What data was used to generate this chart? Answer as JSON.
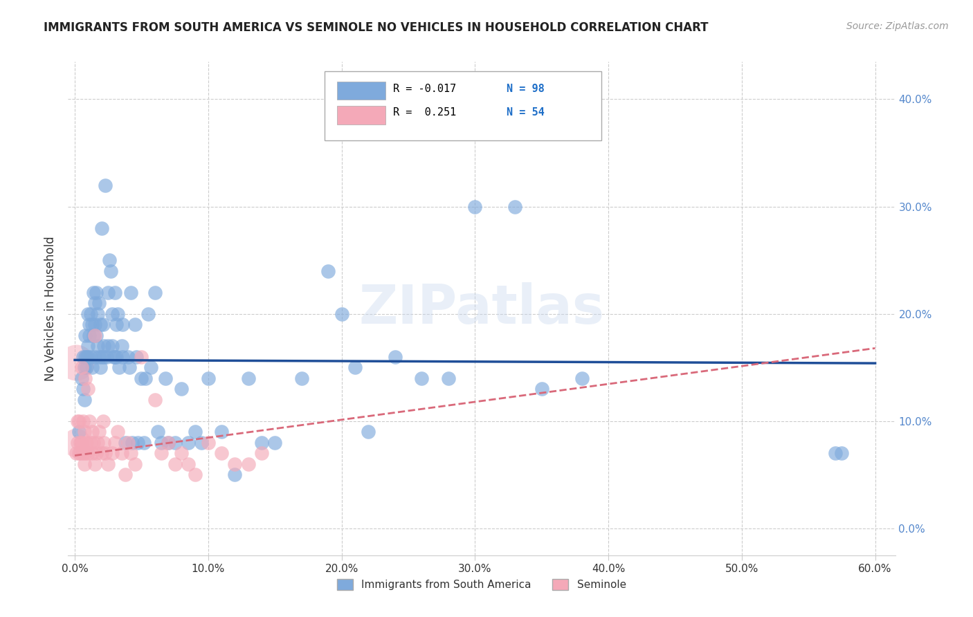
{
  "title": "IMMIGRANTS FROM SOUTH AMERICA VS SEMINOLE NO VEHICLES IN HOUSEHOLD CORRELATION CHART",
  "source": "Source: ZipAtlas.com",
  "ylabel": "No Vehicles in Household",
  "xlim": [
    -0.005,
    0.615
  ],
  "ylim": [
    -0.025,
    0.435
  ],
  "yticks": [
    0.0,
    0.1,
    0.2,
    0.3,
    0.4
  ],
  "xticks": [
    0.0,
    0.1,
    0.2,
    0.3,
    0.4,
    0.5,
    0.6
  ],
  "blue_color": "#7faadc",
  "pink_color": "#f4a9b8",
  "blue_line_color": "#1f4e98",
  "pink_line_color": "#d9697a",
  "legend_blue_r": "-0.017",
  "legend_blue_n": "98",
  "legend_pink_r": "0.251",
  "legend_pink_n": "54",
  "watermark": "ZIPatlas",
  "blue_trend_x": [
    0.0,
    0.6
  ],
  "blue_trend_y": [
    0.157,
    0.154
  ],
  "pink_trend_x": [
    0.0,
    0.6
  ],
  "pink_trend_y": [
    0.068,
    0.168
  ],
  "background_color": "#ffffff",
  "grid_color": "#cccccc",
  "blue_scatter_x": [
    0.003,
    0.005,
    0.006,
    0.006,
    0.007,
    0.007,
    0.008,
    0.008,
    0.009,
    0.009,
    0.01,
    0.01,
    0.01,
    0.011,
    0.011,
    0.012,
    0.012,
    0.013,
    0.013,
    0.014,
    0.014,
    0.015,
    0.015,
    0.015,
    0.016,
    0.016,
    0.017,
    0.017,
    0.018,
    0.018,
    0.019,
    0.019,
    0.02,
    0.02,
    0.021,
    0.022,
    0.022,
    0.023,
    0.024,
    0.025,
    0.025,
    0.026,
    0.027,
    0.028,
    0.028,
    0.029,
    0.03,
    0.03,
    0.031,
    0.031,
    0.032,
    0.033,
    0.035,
    0.036,
    0.036,
    0.038,
    0.04,
    0.041,
    0.042,
    0.043,
    0.045,
    0.046,
    0.047,
    0.05,
    0.052,
    0.053,
    0.055,
    0.057,
    0.06,
    0.062,
    0.065,
    0.068,
    0.07,
    0.075,
    0.08,
    0.085,
    0.09,
    0.095,
    0.1,
    0.11,
    0.12,
    0.13,
    0.14,
    0.15,
    0.17,
    0.19,
    0.2,
    0.21,
    0.22,
    0.24,
    0.26,
    0.28,
    0.3,
    0.33,
    0.35,
    0.38,
    0.57,
    0.575
  ],
  "blue_scatter_y": [
    0.09,
    0.14,
    0.16,
    0.13,
    0.15,
    0.12,
    0.16,
    0.18,
    0.16,
    0.15,
    0.16,
    0.17,
    0.2,
    0.19,
    0.18,
    0.2,
    0.16,
    0.15,
    0.19,
    0.18,
    0.22,
    0.21,
    0.19,
    0.16,
    0.22,
    0.18,
    0.2,
    0.17,
    0.21,
    0.16,
    0.19,
    0.15,
    0.28,
    0.16,
    0.19,
    0.17,
    0.16,
    0.32,
    0.16,
    0.22,
    0.17,
    0.25,
    0.24,
    0.2,
    0.17,
    0.16,
    0.22,
    0.16,
    0.19,
    0.16,
    0.2,
    0.15,
    0.17,
    0.19,
    0.16,
    0.08,
    0.16,
    0.15,
    0.22,
    0.08,
    0.19,
    0.16,
    0.08,
    0.14,
    0.08,
    0.14,
    0.2,
    0.15,
    0.22,
    0.09,
    0.08,
    0.14,
    0.08,
    0.08,
    0.13,
    0.08,
    0.09,
    0.08,
    0.14,
    0.09,
    0.05,
    0.14,
    0.08,
    0.08,
    0.14,
    0.24,
    0.2,
    0.15,
    0.09,
    0.16,
    0.14,
    0.14,
    0.3,
    0.3,
    0.13,
    0.14,
    0.07,
    0.07
  ],
  "pink_scatter_x": [
    0.001,
    0.002,
    0.002,
    0.003,
    0.003,
    0.004,
    0.004,
    0.005,
    0.005,
    0.006,
    0.006,
    0.007,
    0.007,
    0.008,
    0.008,
    0.009,
    0.01,
    0.01,
    0.011,
    0.012,
    0.013,
    0.013,
    0.014,
    0.015,
    0.015,
    0.016,
    0.017,
    0.018,
    0.02,
    0.021,
    0.022,
    0.023,
    0.025,
    0.028,
    0.03,
    0.032,
    0.035,
    0.038,
    0.04,
    0.042,
    0.045,
    0.05,
    0.06,
    0.065,
    0.07,
    0.075,
    0.08,
    0.085,
    0.09,
    0.1,
    0.11,
    0.12,
    0.13,
    0.14
  ],
  "pink_scatter_y": [
    0.07,
    0.08,
    0.1,
    0.07,
    0.1,
    0.08,
    0.07,
    0.15,
    0.08,
    0.07,
    0.1,
    0.06,
    0.09,
    0.14,
    0.07,
    0.08,
    0.13,
    0.07,
    0.1,
    0.08,
    0.09,
    0.07,
    0.08,
    0.06,
    0.18,
    0.07,
    0.08,
    0.09,
    0.07,
    0.1,
    0.08,
    0.07,
    0.06,
    0.07,
    0.08,
    0.09,
    0.07,
    0.05,
    0.08,
    0.07,
    0.06,
    0.16,
    0.12,
    0.07,
    0.08,
    0.06,
    0.07,
    0.06,
    0.05,
    0.08,
    0.07,
    0.06,
    0.06,
    0.07
  ],
  "pink_big_x": [
    0.001
  ],
  "pink_big_y": [
    0.155
  ]
}
